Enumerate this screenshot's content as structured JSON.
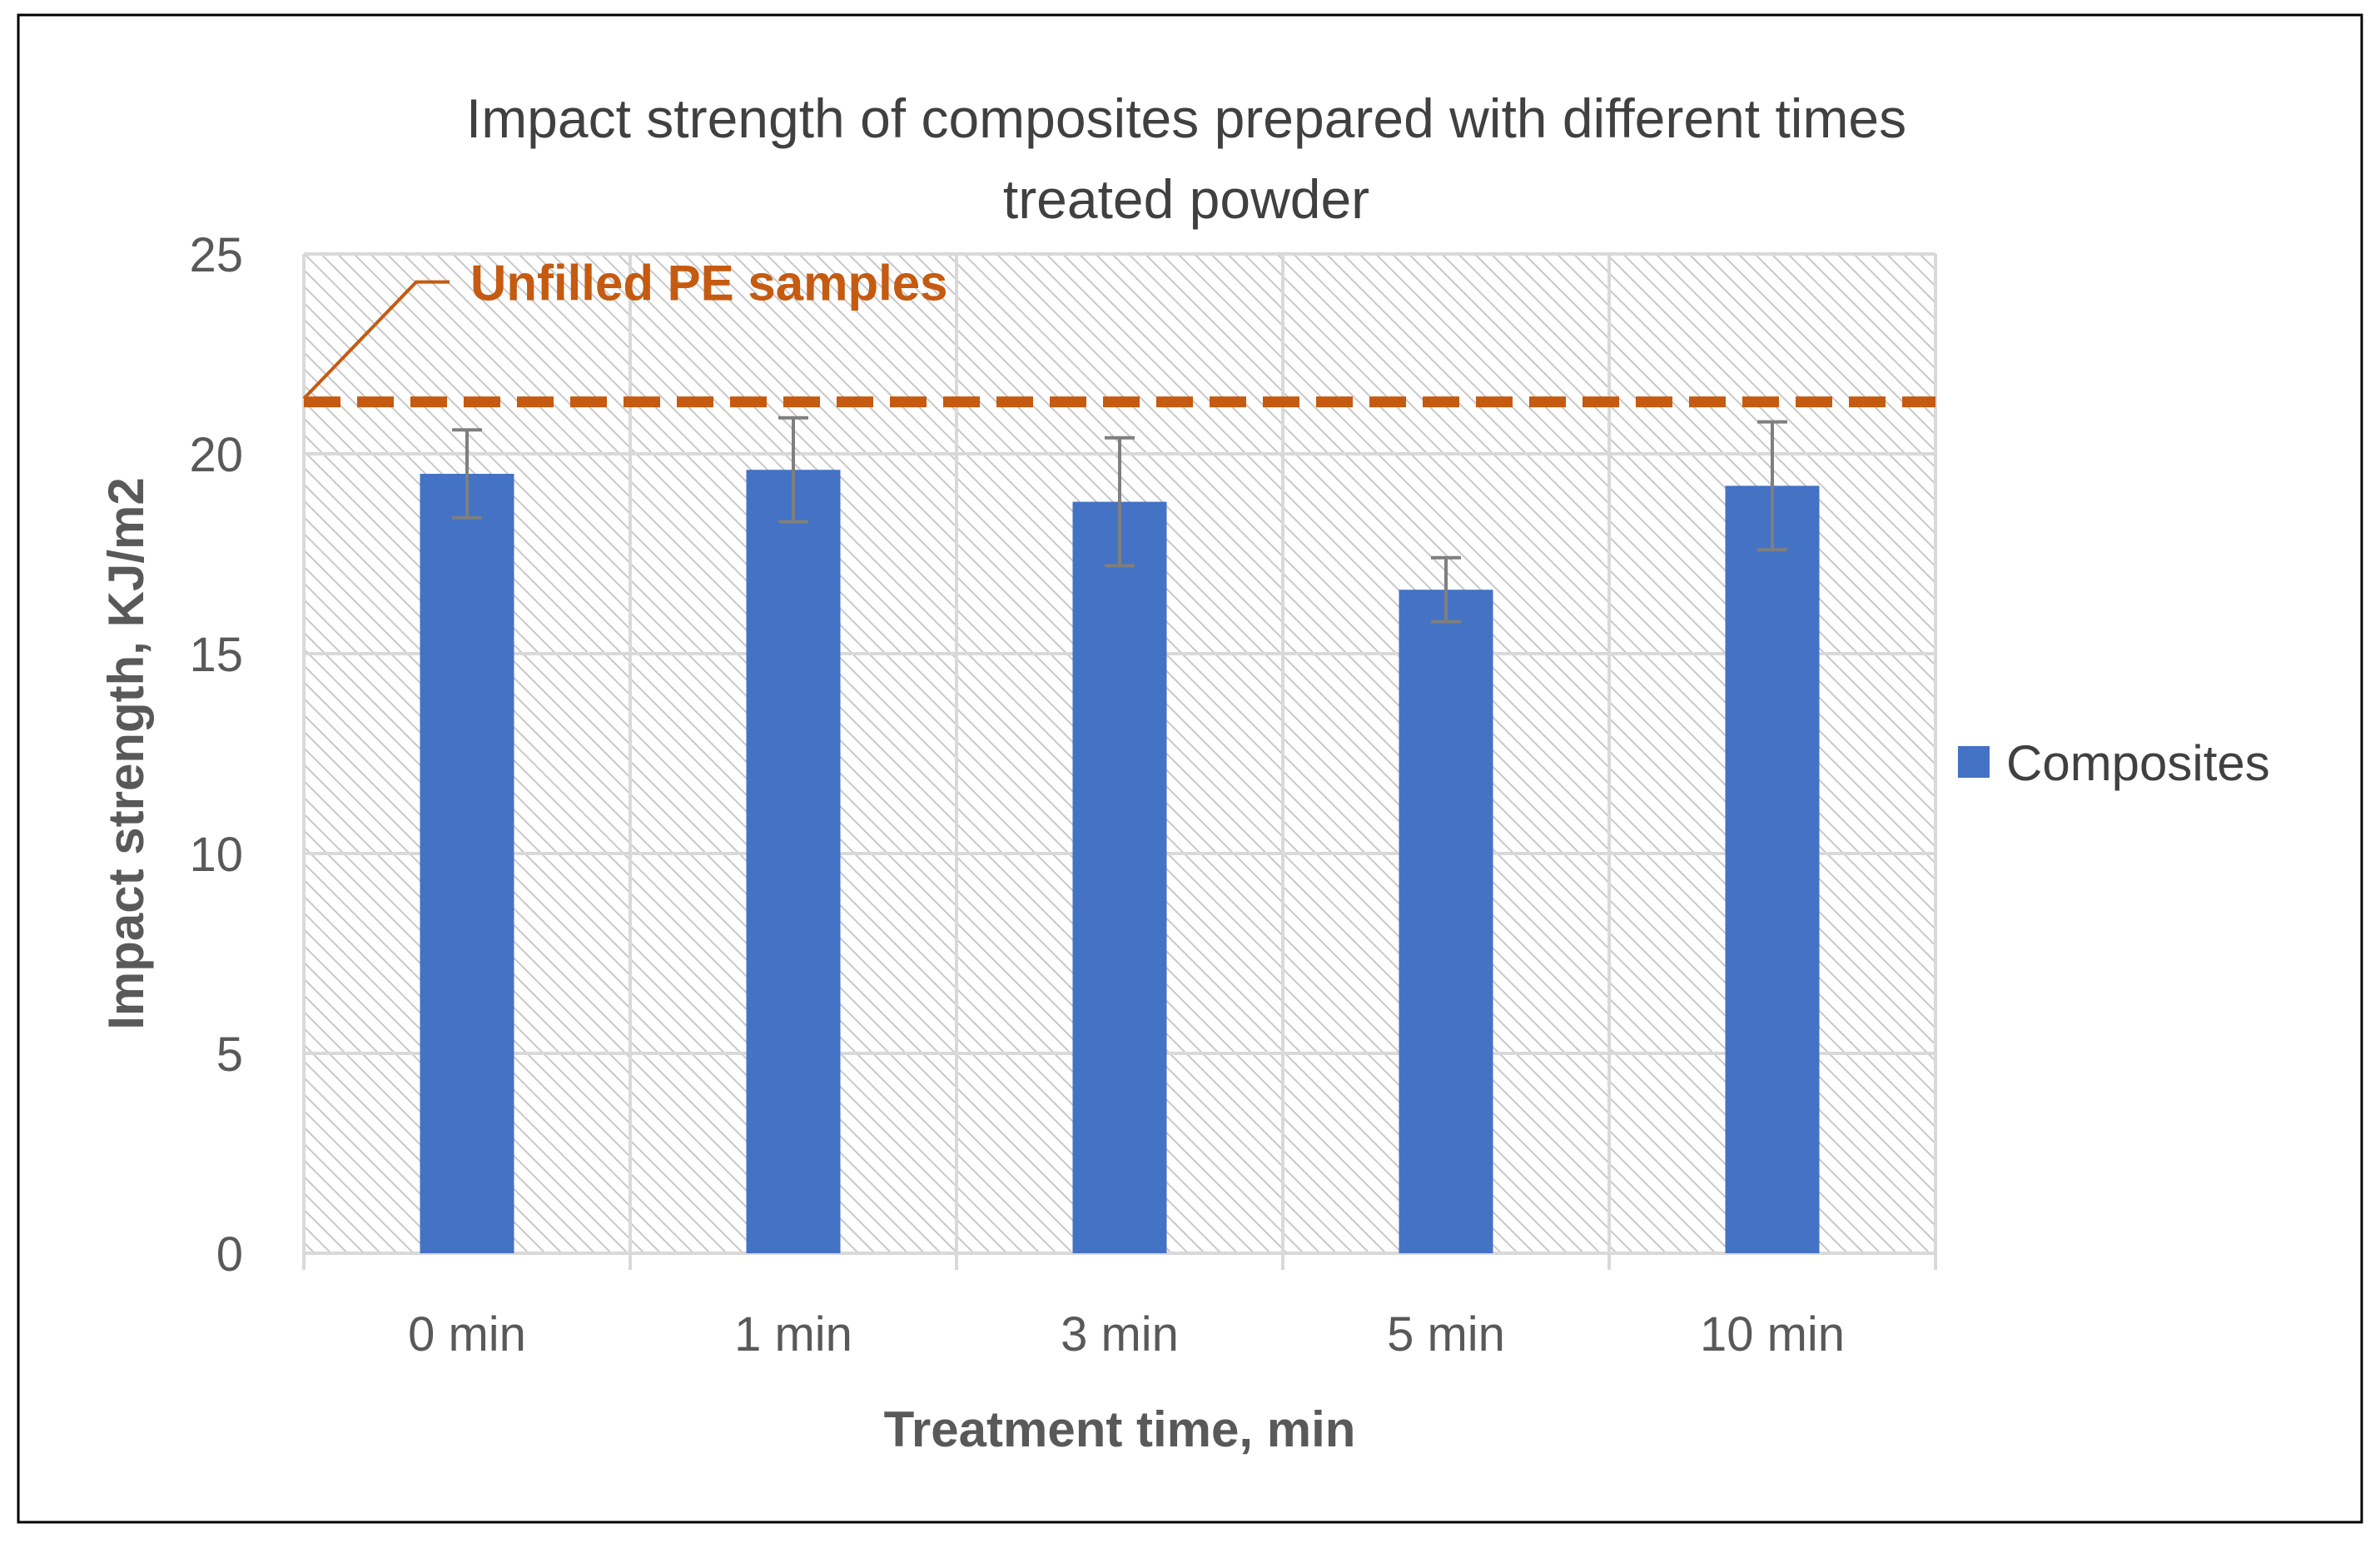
{
  "chart_data": {
    "type": "bar",
    "title": "Impact strength of composites prepared with different times treated powder",
    "title_lines": [
      "Impact strength of composites prepared with different times",
      "treated powder"
    ],
    "xlabel": "Treatment time, min",
    "ylabel": "Impact strength, KJ/m2",
    "categories": [
      "0 min",
      "1 min",
      "3 min",
      "5 min",
      "10 min"
    ],
    "series": [
      {
        "name": "Composites",
        "color": "#4472c4",
        "values": [
          19.5,
          19.6,
          18.8,
          16.6,
          19.2
        ],
        "error": [
          1.1,
          1.3,
          1.6,
          0.8,
          1.6
        ]
      }
    ],
    "ylim": [
      0,
      25
    ],
    "yticks": [
      0,
      5,
      10,
      15,
      20,
      25
    ],
    "ytick_labels": [
      "0",
      "5",
      "10",
      "15",
      "20",
      "25"
    ],
    "grid": true,
    "legend_position": "right",
    "reference_line": {
      "label": "Unfilled PE samples",
      "value": 21.3,
      "color": "#c55a11",
      "style": "dashed"
    },
    "colors": {
      "text": "#404040",
      "axis_title": "#595959",
      "grid": "#d9d9d9",
      "error_bar": "#7f7f7f",
      "hatch": "#bfbfbf",
      "border": "#000000"
    }
  }
}
